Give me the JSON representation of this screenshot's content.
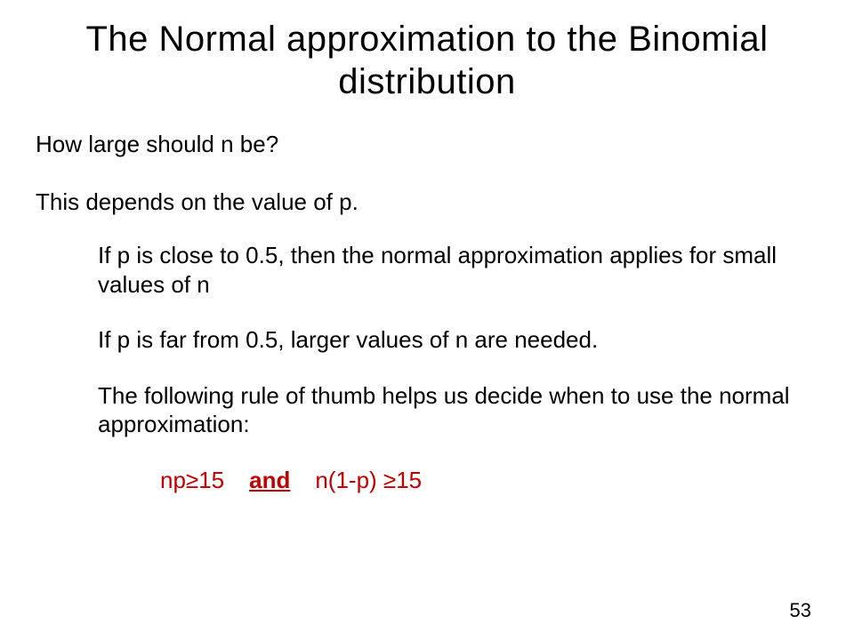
{
  "slide": {
    "title": "The Normal approximation to the Binomial distribution",
    "q1": "How large should n be?",
    "q2": "This depends on the value of p.",
    "b1": "If p is close to 0.5, then the normal approximation applies for small values of n",
    "b2": "If p is far from 0.5, larger values of n are needed.",
    "b3": "The following rule of thumb helps us decide when to use the normal approximation:",
    "rule_left": "np≥15",
    "rule_and": "and",
    "rule_right": "n(1-p) ≥15",
    "page_number": "53"
  },
  "style": {
    "bg": "#ffffff",
    "text_color": "#000000",
    "rule_color": "#c00000",
    "title_fontsize": 40,
    "body_fontsize": 26,
    "font_family": "Arial"
  }
}
